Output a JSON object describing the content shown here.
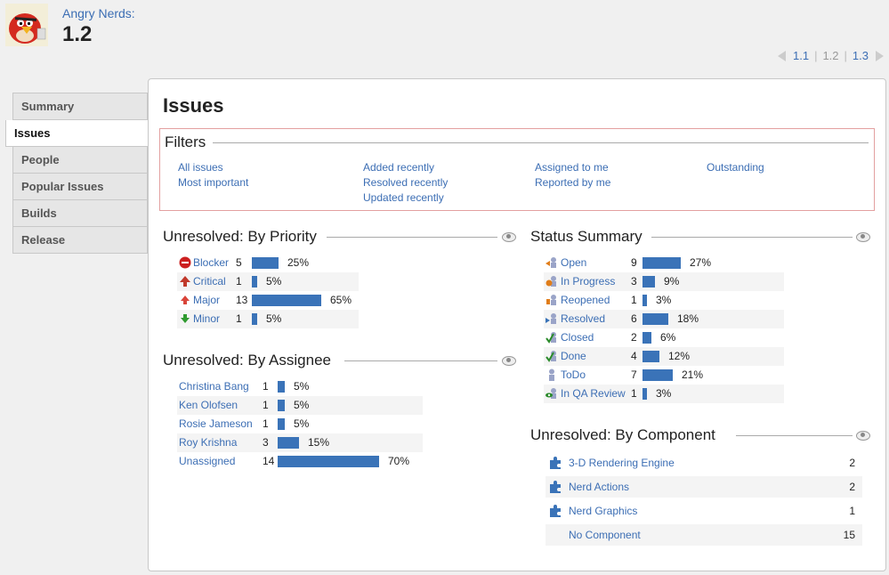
{
  "header": {
    "project_name": "Angry Nerds:",
    "version": "1.2"
  },
  "version_nav": {
    "prev": "1.1",
    "current": "1.2",
    "next": "1.3"
  },
  "tabs": [
    {
      "label": "Summary",
      "active": false
    },
    {
      "label": "Issues",
      "active": true
    },
    {
      "label": "People",
      "active": false
    },
    {
      "label": "Popular Issues",
      "active": false
    },
    {
      "label": "Builds",
      "active": false
    },
    {
      "label": "Release",
      "active": false
    }
  ],
  "main": {
    "title": "Issues",
    "filters": {
      "heading": "Filters",
      "links": {
        "all_issues": "All issues",
        "most_important": "Most important",
        "added_recently": "Added recently",
        "resolved_recently": "Resolved recently",
        "updated_recently": "Updated recently",
        "assigned_to_me": "Assigned to me",
        "reported_by_me": "Reported by me",
        "outstanding": "Outstanding"
      }
    },
    "by_priority": {
      "heading": "Unresolved: By Priority",
      "rows": [
        {
          "name": "Blocker",
          "count": "5",
          "pct": "25%",
          "fraction": 0.25,
          "icon": "blocker-icon"
        },
        {
          "name": "Critical",
          "count": "1",
          "pct": "5%",
          "fraction": 0.05,
          "icon": "critical-icon"
        },
        {
          "name": "Major",
          "count": "13",
          "pct": "65%",
          "fraction": 0.65,
          "icon": "major-icon"
        },
        {
          "name": "Minor",
          "count": "1",
          "pct": "5%",
          "fraction": 0.05,
          "icon": "minor-icon"
        }
      ]
    },
    "by_assignee": {
      "heading": "Unresolved: By Assignee",
      "rows": [
        {
          "name": "Christina Bang",
          "count": "1",
          "pct": "5%",
          "fraction": 0.05
        },
        {
          "name": "Ken Olofsen",
          "count": "1",
          "pct": "5%",
          "fraction": 0.05
        },
        {
          "name": "Rosie Jameson",
          "count": "1",
          "pct": "5%",
          "fraction": 0.05
        },
        {
          "name": "Roy Krishna",
          "count": "3",
          "pct": "15%",
          "fraction": 0.15
        },
        {
          "name": "Unassigned",
          "count": "14",
          "pct": "70%",
          "fraction": 0.7
        }
      ]
    },
    "status_summary": {
      "heading": "Status Summary",
      "rows": [
        {
          "name": "Open",
          "count": "9",
          "pct": "27%",
          "fraction": 0.27,
          "icon": "open-status-icon"
        },
        {
          "name": "In Progress",
          "count": "3",
          "pct": "9%",
          "fraction": 0.09,
          "icon": "in-progress-status-icon"
        },
        {
          "name": "Reopened",
          "count": "1",
          "pct": "3%",
          "fraction": 0.03,
          "icon": "reopened-status-icon"
        },
        {
          "name": "Resolved",
          "count": "6",
          "pct": "18%",
          "fraction": 0.18,
          "icon": "resolved-status-icon"
        },
        {
          "name": "Closed",
          "count": "2",
          "pct": "6%",
          "fraction": 0.06,
          "icon": "closed-status-icon"
        },
        {
          "name": "Done",
          "count": "4",
          "pct": "12%",
          "fraction": 0.12,
          "icon": "done-status-icon"
        },
        {
          "name": "ToDo",
          "count": "7",
          "pct": "21%",
          "fraction": 0.21,
          "icon": "todo-status-icon"
        },
        {
          "name": "In QA Review",
          "count": "1",
          "pct": "3%",
          "fraction": 0.03,
          "icon": "qa-review-status-icon"
        }
      ]
    },
    "by_component": {
      "heading": "Unresolved: By Component",
      "rows": [
        {
          "name": "3-D Rendering Engine",
          "count": "2",
          "icon": "component-icon"
        },
        {
          "name": "Nerd Actions",
          "count": "2",
          "icon": "component-icon"
        },
        {
          "name": "Nerd Graphics",
          "count": "1",
          "icon": "component-icon"
        },
        {
          "name": "No Component",
          "count": "15",
          "icon": ""
        }
      ]
    }
  },
  "colors": {
    "link": "#3c6eb4",
    "bar": "#3a73b8",
    "filter_border": "#e3a0a0"
  }
}
